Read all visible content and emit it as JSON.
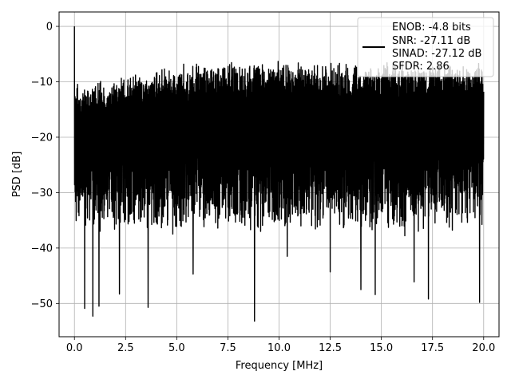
{
  "chart_data": {
    "type": "line",
    "title": "",
    "xlabel": "Frequency [MHz]",
    "ylabel": "PSD [dB]",
    "xlim": [
      -0.75,
      20.75
    ],
    "ylim": [
      -56,
      2.6
    ],
    "x_ticks": [
      0.0,
      2.5,
      5.0,
      7.5,
      10.0,
      12.5,
      15.0,
      17.5,
      20.0
    ],
    "x_tick_labels": [
      "0.0",
      "2.5",
      "5.0",
      "7.5",
      "10.0",
      "12.5",
      "15.0",
      "17.5",
      "20.0"
    ],
    "y_ticks": [
      0,
      -10,
      -20,
      -30,
      -40,
      -50
    ],
    "y_tick_labels": [
      "0",
      "−10",
      "−20",
      "−30",
      "−40",
      "−50"
    ],
    "grid": true,
    "legend_position": "top-right",
    "line_color": "#000000",
    "series": [
      {
        "x_range": [
          0.0,
          20.0
        ],
        "peak": {
          "x": 0.0,
          "y": 0.0
        },
        "noise_floor_max": -7.5,
        "noise_floor_min": -43,
        "notable_minima": [
          {
            "x": 0.5,
            "y": -50.9
          },
          {
            "x": 0.9,
            "y": -52.3
          },
          {
            "x": 1.2,
            "y": -50.5
          },
          {
            "x": 2.2,
            "y": -48.3
          },
          {
            "x": 3.6,
            "y": -50.7
          },
          {
            "x": 5.8,
            "y": -44.7
          },
          {
            "x": 8.8,
            "y": -53.2
          },
          {
            "x": 10.4,
            "y": -41.5
          },
          {
            "x": 12.5,
            "y": -44.3
          },
          {
            "x": 14.0,
            "y": -47.5
          },
          {
            "x": 14.7,
            "y": -48.4
          },
          {
            "x": 16.6,
            "y": -46.1
          },
          {
            "x": 17.3,
            "y": -49.2
          },
          {
            "x": 19.8,
            "y": -49.8
          }
        ]
      }
    ],
    "legend": {
      "entries": [
        "ENOB: -4.8 bits",
        "SNR: -27.11 dB",
        "SINAD: -27.12 dB",
        "SFDR: 2.86"
      ]
    }
  }
}
